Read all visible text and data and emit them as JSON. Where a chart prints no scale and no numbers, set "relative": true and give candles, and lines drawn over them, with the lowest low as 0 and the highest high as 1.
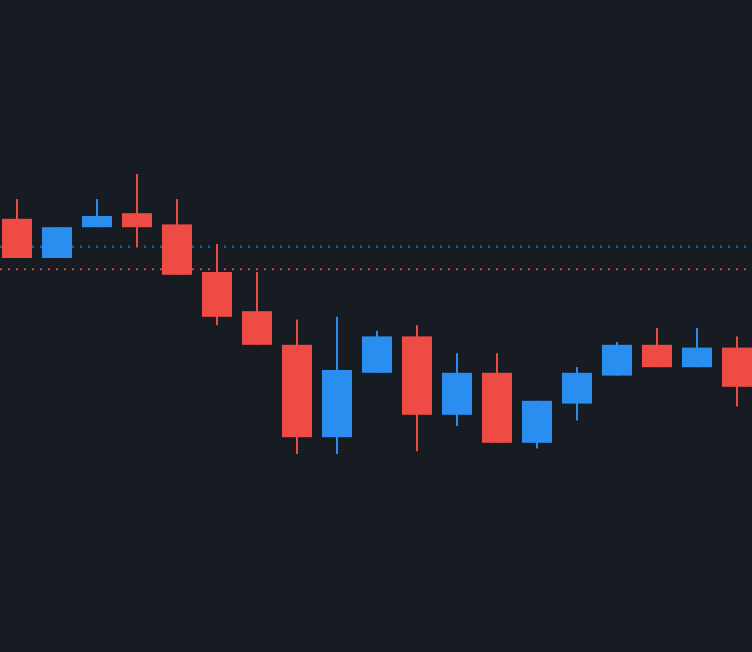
{
  "chart_data": {
    "type": "candlestick",
    "relative": true,
    "categories": [
      null,
      null,
      null,
      null,
      null,
      null,
      null,
      null,
      null,
      null,
      null,
      null,
      null,
      null,
      null,
      null,
      null,
      null,
      null
    ],
    "ohlc": [
      [
        0.84,
        0.91,
        0.7,
        0.7
      ],
      [
        0.7,
        0.81,
        0.7,
        0.81
      ],
      [
        0.81,
        0.91,
        0.81,
        0.85
      ],
      [
        0.86,
        1,
        0.74,
        0.81
      ],
      [
        0.82,
        0.91,
        0.64,
        0.64
      ],
      [
        0.65,
        0.75,
        0.46,
        0.49
      ],
      [
        0.51,
        0.65,
        0.39,
        0.39
      ],
      [
        0.39,
        0.48,
        0,
        0.06
      ],
      [
        0.06,
        0.49,
        0,
        0.3
      ],
      [
        0.29,
        0.44,
        0.29,
        0.42
      ],
      [
        0.42,
        0.46,
        0.01,
        0.14
      ],
      [
        0.14,
        0.36,
        0.1,
        0.29
      ],
      [
        0.29,
        0.36,
        0.04,
        0.04
      ],
      [
        0.04,
        0.19,
        0.02,
        0.19
      ],
      [
        0.18,
        0.31,
        0.12,
        0.29
      ],
      [
        0.28,
        0.4,
        0.28,
        0.39
      ],
      [
        0.39,
        0.45,
        0.31,
        0.31
      ],
      [
        0.31,
        0.45,
        0.31,
        0.38
      ],
      [
        0.38,
        0.42,
        0.17,
        0.24
      ]
    ],
    "ref_lines": [
      {
        "axis": "y",
        "value": 0.74,
        "color": "#1e6fb8",
        "line_style": "dotted"
      },
      {
        "axis": "y",
        "value": 0.66,
        "color": "#c8473f",
        "line_style": "dotted"
      }
    ]
  }
}
